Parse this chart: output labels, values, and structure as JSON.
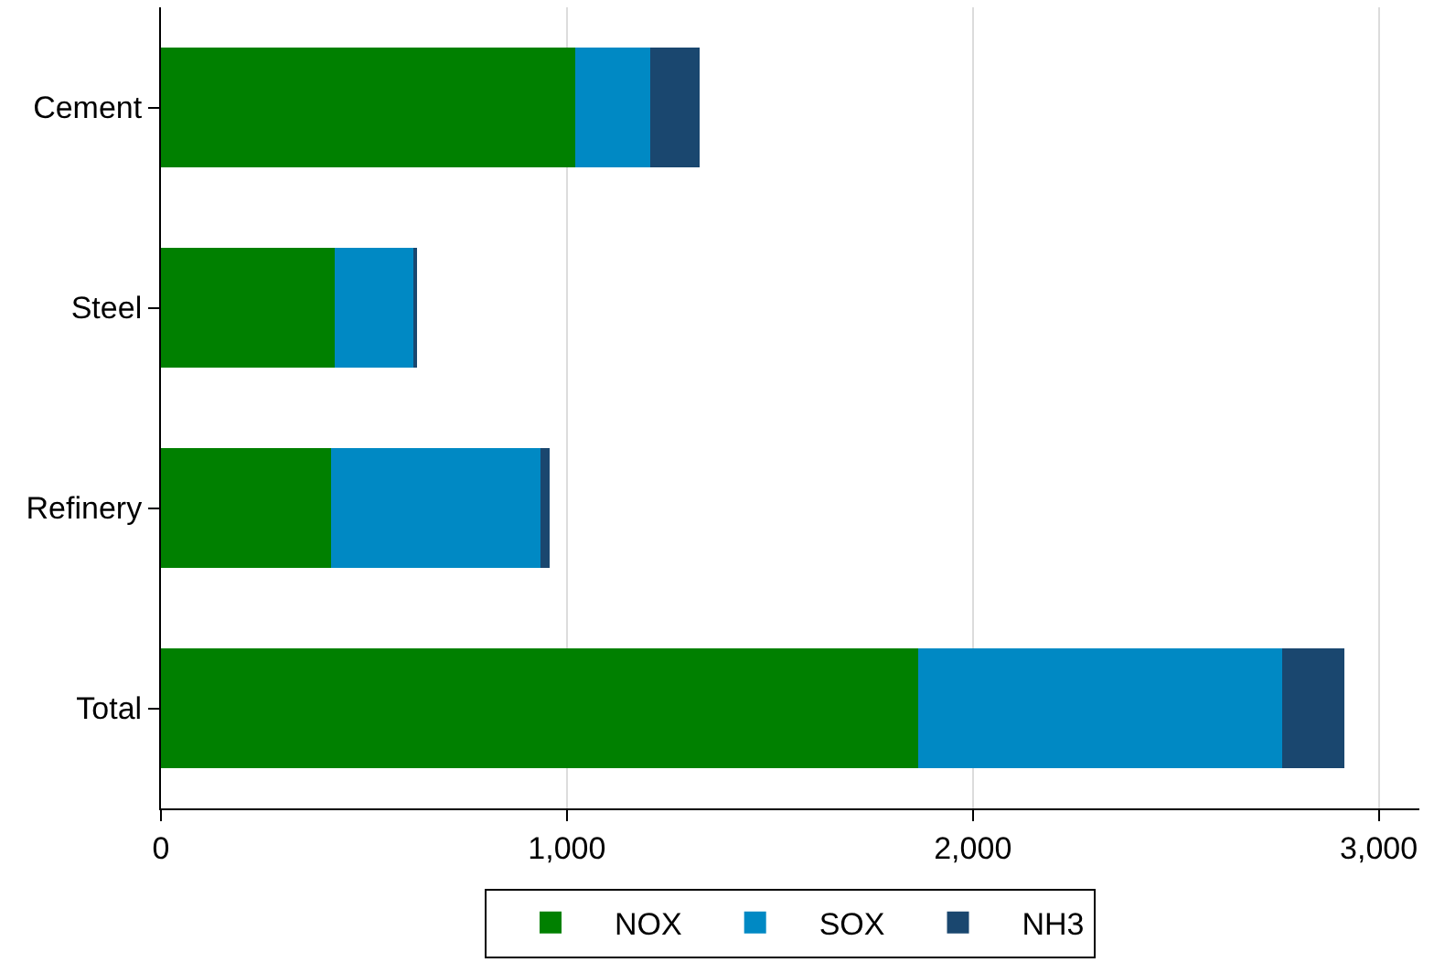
{
  "chart_data": {
    "type": "bar",
    "orientation": "horizontal",
    "stacked": true,
    "categories": [
      "Cement",
      "Steel",
      "Refinery",
      "Total"
    ],
    "series": [
      {
        "name": "NOX",
        "color": "#008000",
        "values": [
          1020,
          427,
          418,
          1865
        ]
      },
      {
        "name": "SOX",
        "color": "#0089c4",
        "values": [
          185,
          194,
          518,
          897
        ]
      },
      {
        "name": "NH3",
        "color": "#1a476f",
        "values": [
          122,
          9,
          22,
          153
        ]
      }
    ],
    "xlim": [
      0,
      3100
    ],
    "xticks": [
      0,
      {
        "value": 1000,
        "label": "1,000"
      },
      {
        "value": 2000,
        "label": "2,000"
      },
      {
        "value": 3000,
        "label": "3,000"
      }
    ],
    "grid": "x",
    "legend": "bottom"
  }
}
